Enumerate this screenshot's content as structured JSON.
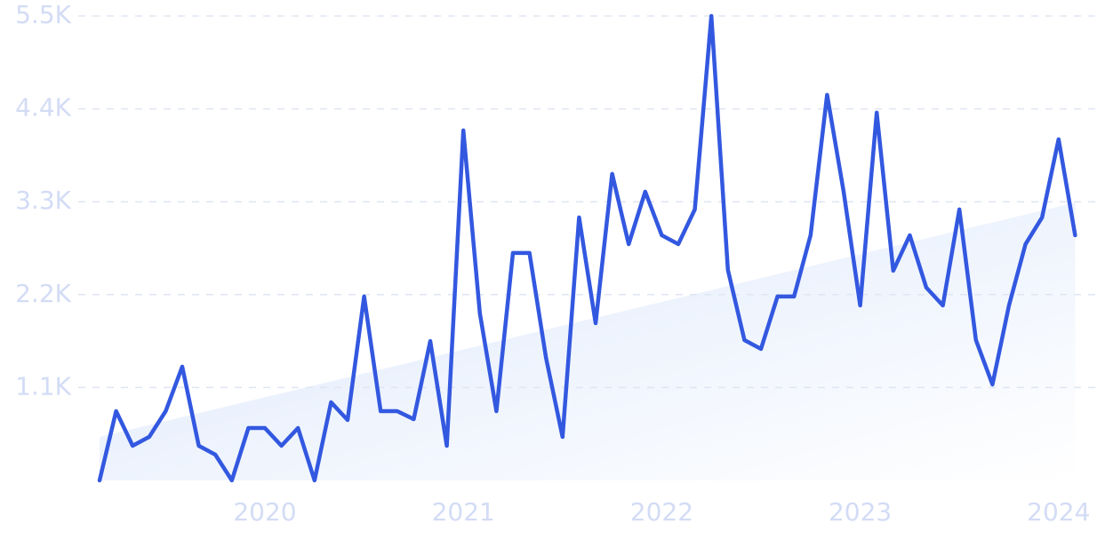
{
  "chart_data": {
    "type": "line",
    "categories": [
      null,
      null,
      null,
      null,
      null,
      null,
      null,
      null,
      null,
      null,
      "2020",
      null,
      null,
      null,
      null,
      null,
      null,
      null,
      null,
      null,
      null,
      null,
      "2021",
      null,
      null,
      null,
      null,
      null,
      null,
      null,
      null,
      null,
      null,
      null,
      "2022",
      null,
      null,
      null,
      null,
      null,
      null,
      null,
      null,
      null,
      null,
      null,
      "2023",
      null,
      null,
      null,
      null,
      null,
      null,
      null,
      null,
      null,
      null,
      null,
      "2024",
      null
    ],
    "series": [
      {
        "color": "#3358e0",
        "values": [
          0,
          820,
          410,
          515,
          820,
          1347,
          410,
          305,
          0,
          620,
          620,
          410,
          620,
          0,
          925,
          715,
          2178,
          820,
          820,
          725,
          1650,
          410,
          4145,
          1978,
          820,
          2693,
          2693,
          1452,
          515,
          3114,
          1862,
          3630,
          2798,
          3419,
          2903,
          2798,
          3209,
          5500,
          2493,
          1662,
          1557,
          2178,
          2178,
          2903,
          4566,
          3419,
          2072,
          4355,
          2483,
          2903,
          2283,
          2072,
          3209,
          1662,
          1136,
          2072,
          2798,
          3114,
          4040,
          2903
        ]
      }
    ],
    "trend": [
      515,
      3290
    ],
    "trend_color": "#dbe6fa",
    "ylim": [
      0,
      5500
    ],
    "yticks": [
      {
        "value": 1100,
        "label": "1.1K"
      },
      {
        "value": 2200,
        "label": "2.2K"
      },
      {
        "value": 3300,
        "label": "3.3K"
      },
      {
        "value": 4400,
        "label": "4.4K"
      },
      {
        "value": 5500,
        "label": "5.5K"
      }
    ],
    "grid": true
  }
}
